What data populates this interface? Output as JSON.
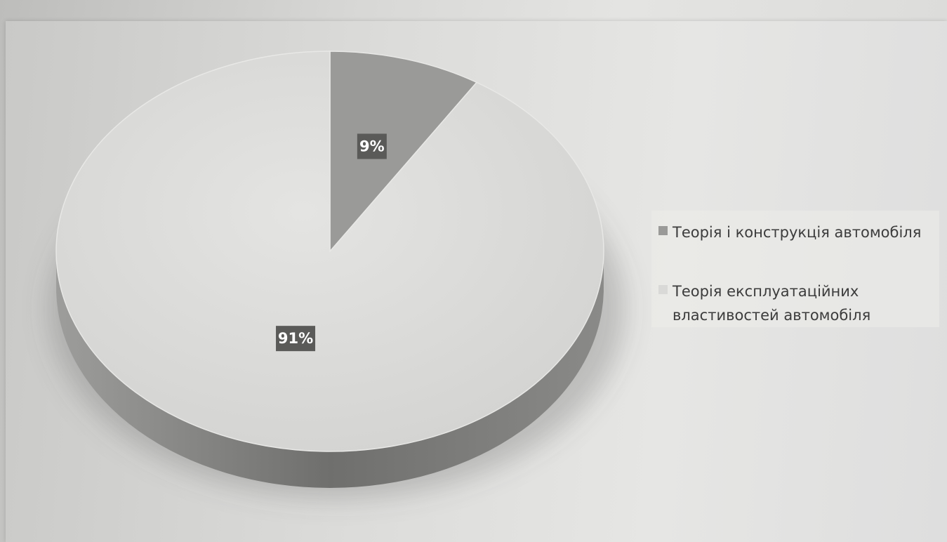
{
  "chart_data": {
    "type": "pie",
    "variant": "3d",
    "categories": [
      "Теорія і конструкція автомобіля",
      "Теорія експлуатаційних властивостей автомобіля"
    ],
    "values": [
      9,
      91
    ],
    "value_suffix": "%",
    "data_labels": [
      "9%",
      "91%"
    ],
    "colors": [
      "#9a9a98",
      "#d9d9d7"
    ],
    "legend": {
      "position": "right",
      "entries": [
        {
          "label": "Теорія і конструкція автомобіля",
          "color": "#9a9a98"
        },
        {
          "label": "Теорія експлуатаційних властивостей автомобіля",
          "color": "#d9d9d7"
        }
      ]
    },
    "start_angle": "top",
    "direction": "clockwise"
  }
}
